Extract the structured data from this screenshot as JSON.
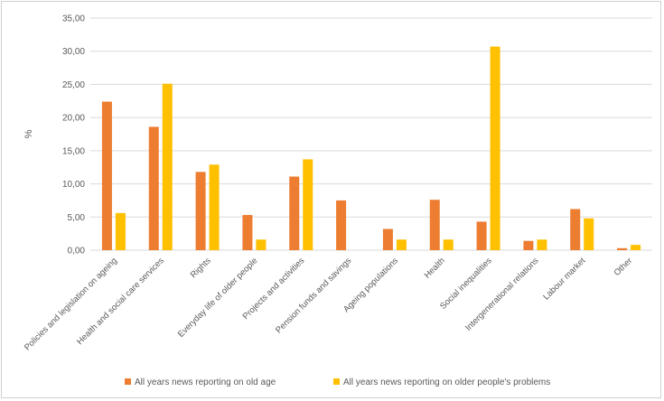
{
  "chart_data": {
    "type": "bar",
    "title": "",
    "xlabel": "",
    "ylabel": "%",
    "ylim": [
      0,
      35
    ],
    "yticks": [
      "0,00",
      "5,00",
      "10,00",
      "15,00",
      "20,00",
      "25,00",
      "30,00",
      "35,00"
    ],
    "grid": true,
    "legend_position": "bottom",
    "categories": [
      "Policies and legislation on ageing",
      "Health and social care services",
      "Rights",
      "Everyday life of older people",
      "Projects and activities",
      "Pension funds and savings",
      "Ageing populations",
      "Health",
      "Social inequalities",
      "Intergenerational relations",
      "Labour market",
      "Other"
    ],
    "series": [
      {
        "name": "All years news reporting on old age",
        "color": "#ED7D31",
        "values": [
          22.4,
          18.6,
          11.8,
          5.3,
          11.1,
          7.5,
          3.2,
          7.6,
          4.3,
          1.4,
          6.2,
          0.3
        ]
      },
      {
        "name": "All years news reporting on older people's problems",
        "color": "#FFC000",
        "values": [
          5.6,
          25.1,
          12.9,
          1.6,
          13.7,
          0,
          1.6,
          1.6,
          30.7,
          1.6,
          4.8,
          0.8
        ]
      }
    ]
  }
}
